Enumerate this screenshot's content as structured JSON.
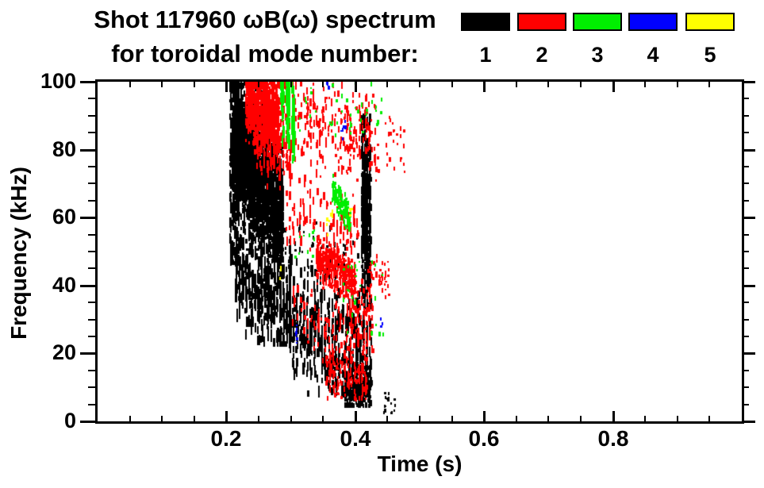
{
  "header": {
    "title_line1": "Shot 117960 ωB(ω) spectrum",
    "title_line2": "for toroidal mode number:"
  },
  "chart_data": {
    "type": "scatter",
    "title": "Shot 117960 ωB(ω) spectrum for toroidal mode number: 1 2 3 4 5",
    "xlabel": "Time (s)",
    "ylabel": "Frequency (kHz)",
    "xlim": [
      0,
      1.0
    ],
    "ylim": [
      0,
      100
    ],
    "grid": false,
    "legend_position": "top-right",
    "xticks": [
      {
        "value": 0.2,
        "label": "0.2"
      },
      {
        "value": 0.4,
        "label": "0.4"
      },
      {
        "value": 0.6,
        "label": "0.6"
      },
      {
        "value": 0.8,
        "label": "0.8"
      }
    ],
    "yticks": [
      {
        "value": 0,
        "label": "0"
      },
      {
        "value": 20,
        "label": "20"
      },
      {
        "value": 40,
        "label": "40"
      },
      {
        "value": 60,
        "label": "60"
      },
      {
        "value": 80,
        "label": "80"
      },
      {
        "value": 100,
        "label": "100"
      }
    ],
    "x_minor_step": 0.05,
    "y_minor_step": 5,
    "legend": [
      {
        "label": "1",
        "color": "#000000",
        "name": "toroidal mode n=1"
      },
      {
        "label": "2",
        "color": "#ff0000",
        "name": "toroidal mode n=2"
      },
      {
        "label": "3",
        "color": "#00ee00",
        "name": "toroidal mode n=3"
      },
      {
        "label": "4",
        "color": "#0000ff",
        "name": "toroidal mode n=4"
      },
      {
        "label": "5",
        "color": "#ffff00",
        "name": "toroidal mode n=5"
      }
    ],
    "series": [
      {
        "mode": 1,
        "color": "#000000",
        "clusters": [
          {
            "t": [
              0.204,
              0.219
            ],
            "fc": [
              75,
              75
            ],
            "fs": 18,
            "fclip": [
              46,
              101
            ],
            "n": 320,
            "len": [
              4,
              14
            ],
            "cols": 5
          },
          {
            "t": [
              0.208,
              0.287
            ],
            "fc": [
              80,
              60
            ],
            "fs": 9,
            "fclip": [
              42,
              98
            ],
            "n": 2600,
            "len": [
              3,
              9
            ],
            "cols": 26
          },
          {
            "t": [
              0.21,
              0.255
            ],
            "fc": [
              88,
              78
            ],
            "fs": 8,
            "fclip": [
              60,
              101
            ],
            "n": 500,
            "len": [
              3,
              8
            ],
            "cols": 15
          },
          {
            "t": [
              0.212,
              0.3
            ],
            "fc": [
              42,
              31
            ],
            "fs": 7,
            "fclip": [
              22,
              55
            ],
            "n": 420,
            "len": [
              6,
              18
            ],
            "cols": 18
          },
          {
            "t": [
              0.295,
              0.425
            ],
            "fc": [
              30,
              17
            ],
            "fs": 8,
            "fclip": [
              7,
              46
            ],
            "n": 520,
            "len": [
              6,
              16
            ],
            "cols": 24
          },
          {
            "t": [
              0.28,
              0.42
            ],
            "fc": [
              50,
              46
            ],
            "fs": 5,
            "fclip": [
              40,
              58
            ],
            "n": 70,
            "len": [
              3,
              8
            ],
            "cols": 20
          },
          {
            "t": [
              0.408,
              0.423
            ],
            "fc": [
              62,
              62
            ],
            "fs": 14,
            "fclip": [
              33,
              88
            ],
            "n": 480,
            "len": [
              4,
              12
            ],
            "cols": 4
          },
          {
            "t": [
              0.381,
              0.423
            ],
            "fc": [
              10,
              9
            ],
            "fs": 3.5,
            "fclip": [
              4,
              17
            ],
            "n": 300,
            "len": [
              3,
              8
            ],
            "cols": 12
          },
          {
            "t": [
              0.442,
              0.463
            ],
            "fc": [
              5,
              5
            ],
            "fs": 2,
            "fclip": [
              2,
              9
            ],
            "n": 16,
            "len": [
              2,
              5
            ],
            "cols": 4
          }
        ]
      },
      {
        "mode": 2,
        "color": "#ff0000",
        "clusters": [
          {
            "t": [
              0.228,
              0.281
            ],
            "fc": [
              95,
              87
            ],
            "fs": 5,
            "fclip": [
              79,
              101
            ],
            "n": 850,
            "len": [
              3,
              9
            ],
            "cols": 16
          },
          {
            "t": [
              0.24,
              0.3
            ],
            "fc": [
              82,
              76
            ],
            "fs": 5,
            "fclip": [
              68,
              92
            ],
            "n": 160,
            "len": [
              4,
              12
            ],
            "cols": 12
          },
          {
            "t": [
              0.27,
              0.432
            ],
            "fc": [
              88,
              82
            ],
            "fs": 7,
            "fclip": [
              66,
              101
            ],
            "n": 300,
            "len": [
              3,
              10
            ],
            "cols": 34
          },
          {
            "t": [
              0.432,
              0.478
            ],
            "fc": [
              83,
              80
            ],
            "fs": 5,
            "fclip": [
              70,
              92
            ],
            "n": 28,
            "len": [
              2,
              6
            ],
            "cols": 8
          },
          {
            "t": [
              0.29,
              0.405
            ],
            "fc": [
              60,
              55
            ],
            "fs": 5,
            "fclip": [
              48,
              70
            ],
            "n": 110,
            "len": [
              4,
              12
            ],
            "cols": 22
          },
          {
            "t": [
              0.338,
              0.4
            ],
            "fc": [
              47,
              41
            ],
            "fs": 3,
            "fclip": [
              36,
              52
            ],
            "n": 420,
            "len": [
              3,
              8
            ],
            "cols": 14
          },
          {
            "t": [
              0.3,
              0.4
            ],
            "fc": [
              30,
              24
            ],
            "fs": 5,
            "fclip": [
              17,
              38
            ],
            "n": 90,
            "len": [
              4,
              10
            ],
            "cols": 18
          },
          {
            "t": [
              0.384,
              0.427
            ],
            "fc": [
              33,
              27
            ],
            "fs": 6,
            "fclip": [
              20,
              44
            ],
            "n": 130,
            "len": [
              3,
              9
            ],
            "cols": 10
          },
          {
            "t": [
              0.352,
              0.418
            ],
            "fc": [
              14,
              12
            ],
            "fs": 3.5,
            "fclip": [
              6,
              20
            ],
            "n": 150,
            "len": [
              3,
              8
            ],
            "cols": 12
          },
          {
            "t": [
              0.416,
              0.452
            ],
            "fc": [
              43,
              41
            ],
            "fs": 3,
            "fclip": [
              36,
              48
            ],
            "n": 45,
            "len": [
              2,
              6
            ],
            "cols": 8
          }
        ]
      },
      {
        "mode": 3,
        "color": "#00ee00",
        "clusters": [
          {
            "t": [
              0.281,
              0.307
            ],
            "fc": [
              92,
              86
            ],
            "fs": 6,
            "fclip": [
              76,
              101
            ],
            "n": 100,
            "len": [
              6,
              16
            ],
            "cols": 3
          },
          {
            "t": [
              0.31,
              0.452
            ],
            "fc": [
              92,
              90
            ],
            "fs": 6,
            "fclip": [
              76,
              101
            ],
            "n": 40,
            "len": [
              2,
              6
            ],
            "cols": 18
          },
          {
            "t": [
              0.363,
              0.391
            ],
            "fc": [
              69,
              58
            ],
            "fs": 2.2,
            "fclip": [
              56,
              72
            ],
            "n": 130,
            "len": [
              3,
              7
            ],
            "cols": 10
          },
          {
            "t": [
              0.378,
              0.452
            ],
            "fc": [
              42,
              34
            ],
            "fs": 8,
            "fclip": [
              25,
              56
            ],
            "n": 26,
            "len": [
              2,
              6
            ],
            "cols": 12
          },
          {
            "t": [
              0.3,
              0.36
            ],
            "fc": [
              55,
              53
            ],
            "fs": 3,
            "fclip": [
              48,
              60
            ],
            "n": 10,
            "len": [
              2,
              5
            ],
            "cols": 8
          }
        ]
      },
      {
        "mode": 4,
        "color": "#0000ff",
        "clusters": [
          {
            "t": [
              0.354,
              0.357
            ],
            "fc": [
              98,
              98
            ],
            "fs": 1.2,
            "fclip": [
              95,
              101
            ],
            "n": 4,
            "len": [
              2,
              5
            ],
            "cols": 1
          },
          {
            "t": [
              0.377,
              0.38
            ],
            "fc": [
              84.5,
              84.5
            ],
            "fs": 1.2,
            "fclip": [
              81,
              88
            ],
            "n": 4,
            "len": [
              2,
              5
            ],
            "cols": 1
          },
          {
            "t": [
              0.381,
              0.384
            ],
            "fc": [
              87,
              87
            ],
            "fs": 1.2,
            "fclip": [
              84,
              90
            ],
            "n": 3,
            "len": [
              2,
              5
            ],
            "cols": 1
          },
          {
            "t": [
              0.306,
              0.309
            ],
            "fc": [
              27.5,
              27.5
            ],
            "fs": 1.2,
            "fclip": [
              24,
              31
            ],
            "n": 4,
            "len": [
              2,
              5
            ],
            "cols": 1
          },
          {
            "t": [
              0.307,
              0.31
            ],
            "fc": [
              23.5,
              23.5
            ],
            "fs": 1.2,
            "fclip": [
              20,
              27
            ],
            "n": 4,
            "len": [
              2,
              5
            ],
            "cols": 1
          },
          {
            "t": [
              0.438,
              0.442
            ],
            "fc": [
              28,
              28
            ],
            "fs": 1.2,
            "fclip": [
              25,
              31
            ],
            "n": 3,
            "len": [
              2,
              5
            ],
            "cols": 1
          }
        ]
      },
      {
        "mode": 5,
        "color": "#ffff00",
        "clusters": [
          {
            "t": [
              0.389,
              0.393
            ],
            "fc": [
              62.5,
              62.5
            ],
            "fs": 1.2,
            "fclip": [
              59,
              66
            ],
            "n": 4,
            "len": [
              3,
              6
            ],
            "cols": 1
          },
          {
            "t": [
              0.355,
              0.359
            ],
            "fc": [
              57.5,
              57.5
            ],
            "fs": 1.2,
            "fclip": [
              54,
              61
            ],
            "n": 4,
            "len": [
              3,
              6
            ],
            "cols": 1
          },
          {
            "t": [
              0.281,
              0.285
            ],
            "fc": [
              43.3,
              43.3
            ],
            "fs": 1.2,
            "fclip": [
              40,
              47
            ],
            "n": 3,
            "len": [
              3,
              6
            ],
            "cols": 1
          },
          {
            "t": [
              0.36,
              0.364
            ],
            "fc": [
              60.5,
              60.5
            ],
            "fs": 1.2,
            "fclip": [
              57,
              64
            ],
            "n": 3,
            "len": [
              3,
              6
            ],
            "cols": 1
          }
        ]
      }
    ]
  }
}
